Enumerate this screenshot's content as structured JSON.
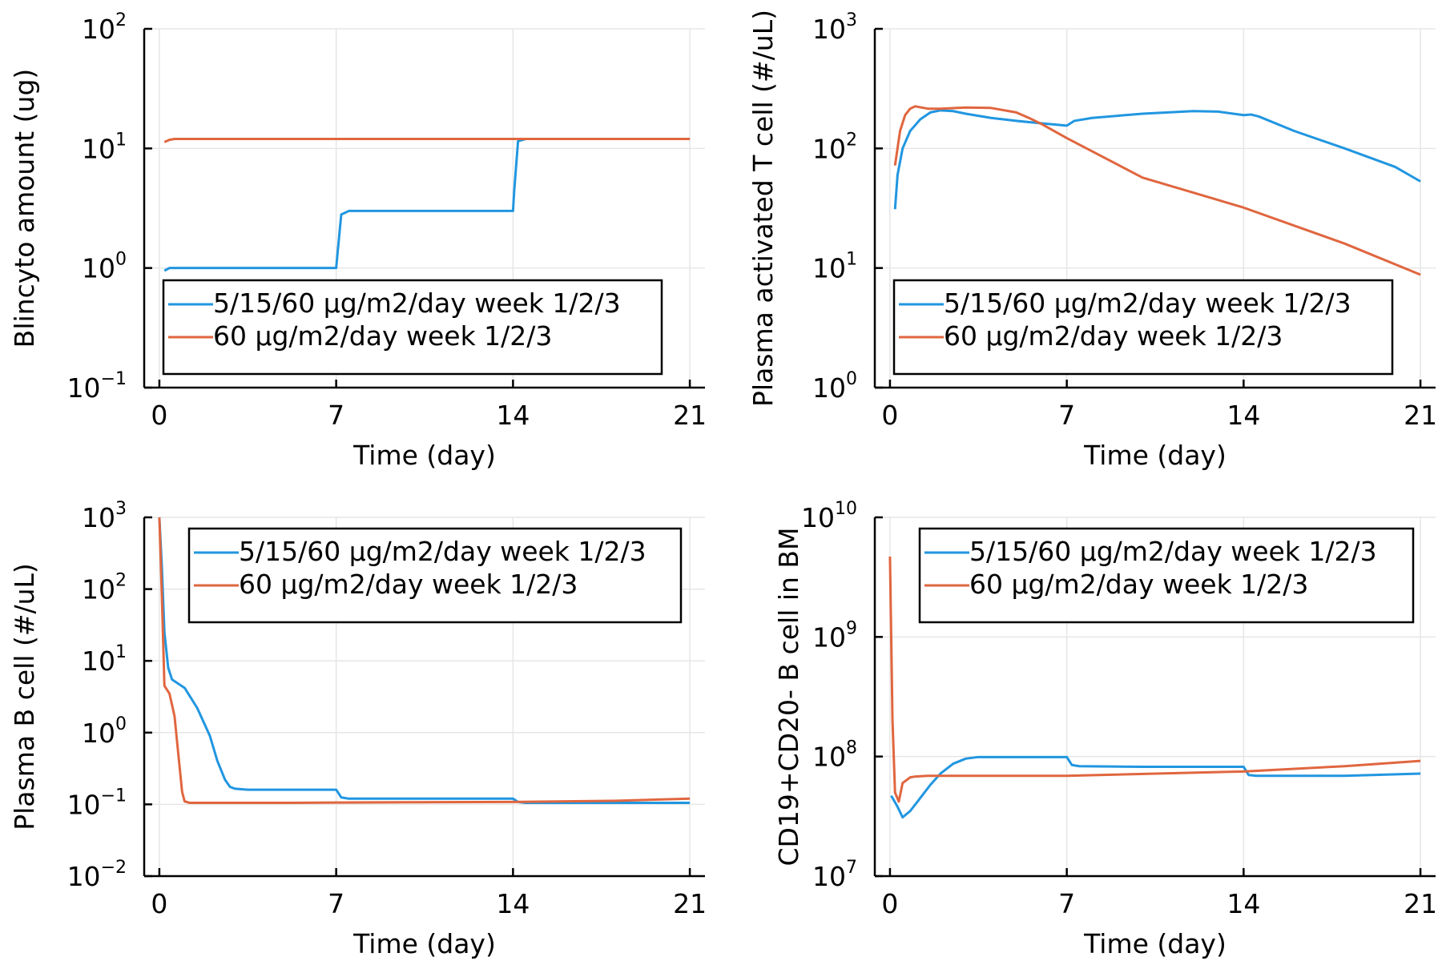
{
  "colors": {
    "series1": "#2196e0",
    "series2": "#e0663f",
    "axis": "#000000",
    "grid": "#e6e6e6"
  },
  "chart_data": [
    {
      "type": "line",
      "xlabel": "Time (day)",
      "ylabel": "Blincyto amount (ug)",
      "yscale": "log",
      "xlim": [
        -0.6,
        21.6
      ],
      "xticks": [
        "0",
        "7",
        "14",
        "21"
      ],
      "ylim_exp": [
        -1,
        2
      ],
      "yticks": [
        {
          "base": "10",
          "exp": "2"
        },
        {
          "base": "10",
          "exp": "1"
        },
        {
          "base": "10",
          "exp": "0"
        },
        {
          "base": "10",
          "exp": "−1"
        }
      ],
      "grid": true,
      "legend": "bottom-left",
      "series": [
        {
          "name": "5/15/60 µg/m2/day week 1/2/3",
          "x": [
            0.2,
            0.4,
            1,
            3,
            6,
            7,
            7.05,
            7.2,
            7.5,
            10,
            13,
            14,
            14.05,
            14.2,
            14.5,
            18,
            21
          ],
          "y": [
            0.95,
            1.0,
            1.0,
            1.0,
            1.0,
            1.0,
            1.3,
            2.8,
            3.0,
            3.0,
            3.0,
            3.0,
            4.5,
            11.5,
            12.0,
            12.0,
            12.0
          ]
        },
        {
          "name": "60 µg/m2/day week 1/2/3",
          "x": [
            0.2,
            0.4,
            0.6,
            1,
            3,
            7,
            10,
            14,
            18,
            21
          ],
          "y": [
            11.3,
            11.8,
            12.0,
            12.0,
            12.0,
            12.0,
            12.0,
            12.0,
            12.0,
            12.0
          ]
        }
      ]
    },
    {
      "type": "line",
      "xlabel": "Time (day)",
      "ylabel": "Plasma activated T cell (#/uL)",
      "yscale": "log",
      "xlim": [
        -0.6,
        21.6
      ],
      "xticks": [
        "0",
        "7",
        "14",
        "21"
      ],
      "ylim_exp": [
        0,
        3
      ],
      "yticks": [
        {
          "base": "10",
          "exp": "3"
        },
        {
          "base": "10",
          "exp": "2"
        },
        {
          "base": "10",
          "exp": "1"
        },
        {
          "base": "10",
          "exp": "0"
        }
      ],
      "grid": true,
      "legend": "bottom-left",
      "series": [
        {
          "name": "5/15/60 µg/m2/day week 1/2/3",
          "x": [
            0.2,
            0.3,
            0.5,
            0.8,
            1.2,
            1.6,
            2,
            2.5,
            3,
            4,
            5,
            6,
            7,
            7.3,
            8,
            10,
            12,
            13,
            14,
            14.3,
            14.6,
            16,
            18,
            20,
            21
          ],
          "y": [
            31,
            60,
            100,
            140,
            175,
            200,
            208,
            205,
            195,
            180,
            170,
            162,
            155,
            170,
            180,
            195,
            205,
            203,
            190,
            192,
            185,
            140,
            100,
            70,
            53
          ]
        },
        {
          "name": "60 µg/m2/day week 1/2/3",
          "x": [
            0.2,
            0.4,
            0.6,
            0.8,
            1,
            1.5,
            2,
            3,
            4,
            5,
            5.5,
            6,
            7,
            10,
            14,
            18,
            21
          ],
          "y": [
            72,
            140,
            190,
            215,
            225,
            215,
            215,
            220,
            218,
            200,
            180,
            160,
            122,
            57,
            32,
            16,
            8.8
          ]
        }
      ]
    },
    {
      "type": "line",
      "xlabel": "Time (day)",
      "ylabel": "Plasma B cell (#/uL)",
      "yscale": "log",
      "xlim": [
        -0.6,
        21.6
      ],
      "xticks": [
        "0",
        "7",
        "14",
        "21"
      ],
      "ylim_exp": [
        -2,
        3
      ],
      "yticks": [
        {
          "base": "10",
          "exp": "3"
        },
        {
          "base": "10",
          "exp": "2"
        },
        {
          "base": "10",
          "exp": "1"
        },
        {
          "base": "10",
          "exp": "0"
        },
        {
          "base": "10",
          "exp": "−1"
        },
        {
          "base": "10",
          "exp": "−2"
        }
      ],
      "grid": true,
      "legend": "top-right",
      "series": [
        {
          "name": "5/15/60 µg/m2/day week 1/2/3",
          "x": [
            0,
            0.1,
            0.2,
            0.35,
            0.5,
            1,
            1.5,
            2,
            2.3,
            2.6,
            2.8,
            3,
            3.5,
            5,
            7,
            7.2,
            7.5,
            10,
            14,
            14.2,
            14.5,
            18,
            21
          ],
          "y": [
            1000,
            200,
            25,
            8,
            5.5,
            4.2,
            2.2,
            0.9,
            0.4,
            0.22,
            0.175,
            0.165,
            0.16,
            0.16,
            0.16,
            0.125,
            0.12,
            0.12,
            0.12,
            0.108,
            0.105,
            0.105,
            0.105
          ]
        },
        {
          "name": "60 µg/m2/day week 1/2/3",
          "x": [
            0,
            0.1,
            0.2,
            0.4,
            0.6,
            0.9,
            1,
            1.2,
            2,
            5,
            7,
            10,
            14,
            18,
            21
          ],
          "y": [
            1000,
            80,
            4.5,
            3.5,
            1.7,
            0.15,
            0.11,
            0.105,
            0.105,
            0.105,
            0.106,
            0.107,
            0.108,
            0.112,
            0.12
          ]
        }
      ]
    },
    {
      "type": "line",
      "xlabel": "Time (day)",
      "ylabel": "CD19+CD20- B cell in BM",
      "yscale": "log",
      "xlim": [
        -0.6,
        21.6
      ],
      "xticks": [
        "0",
        "7",
        "14",
        "21"
      ],
      "ylim_exp": [
        7,
        10
      ],
      "yticks": [
        {
          "base": "10",
          "exp": "10"
        },
        {
          "base": "10",
          "exp": "9"
        },
        {
          "base": "10",
          "exp": "8"
        },
        {
          "base": "10",
          "exp": "7"
        }
      ],
      "grid": true,
      "legend": "top-right",
      "series": [
        {
          "name": "5/15/60 µg/m2/day week 1/2/3",
          "x": [
            0.05,
            0.3,
            0.5,
            0.8,
            1.2,
            1.6,
            2,
            2.5,
            3,
            3.5,
            5,
            7,
            7.2,
            7.5,
            10,
            14,
            14.2,
            14.5,
            18,
            21
          ],
          "y": [
            47000000,
            38000000,
            31000000,
            35000000,
            45000000,
            58000000,
            72000000,
            87000000,
            96000000,
            99000000,
            99000000,
            99000000,
            85000000,
            83000000,
            82000000,
            82000000,
            70000000,
            69000000,
            69000000,
            72000000
          ]
        },
        {
          "name": "60 µg/m2/day week 1/2/3",
          "x": [
            0,
            0.1,
            0.2,
            0.35,
            0.5,
            0.8,
            1,
            1.5,
            3,
            7,
            14,
            18,
            21
          ],
          "y": [
            4700000000,
            200000000,
            50000000,
            42000000,
            60000000,
            67000000,
            68000000,
            69000000,
            69000000,
            69000000,
            75000000,
            83000000,
            92000000
          ]
        }
      ]
    }
  ]
}
